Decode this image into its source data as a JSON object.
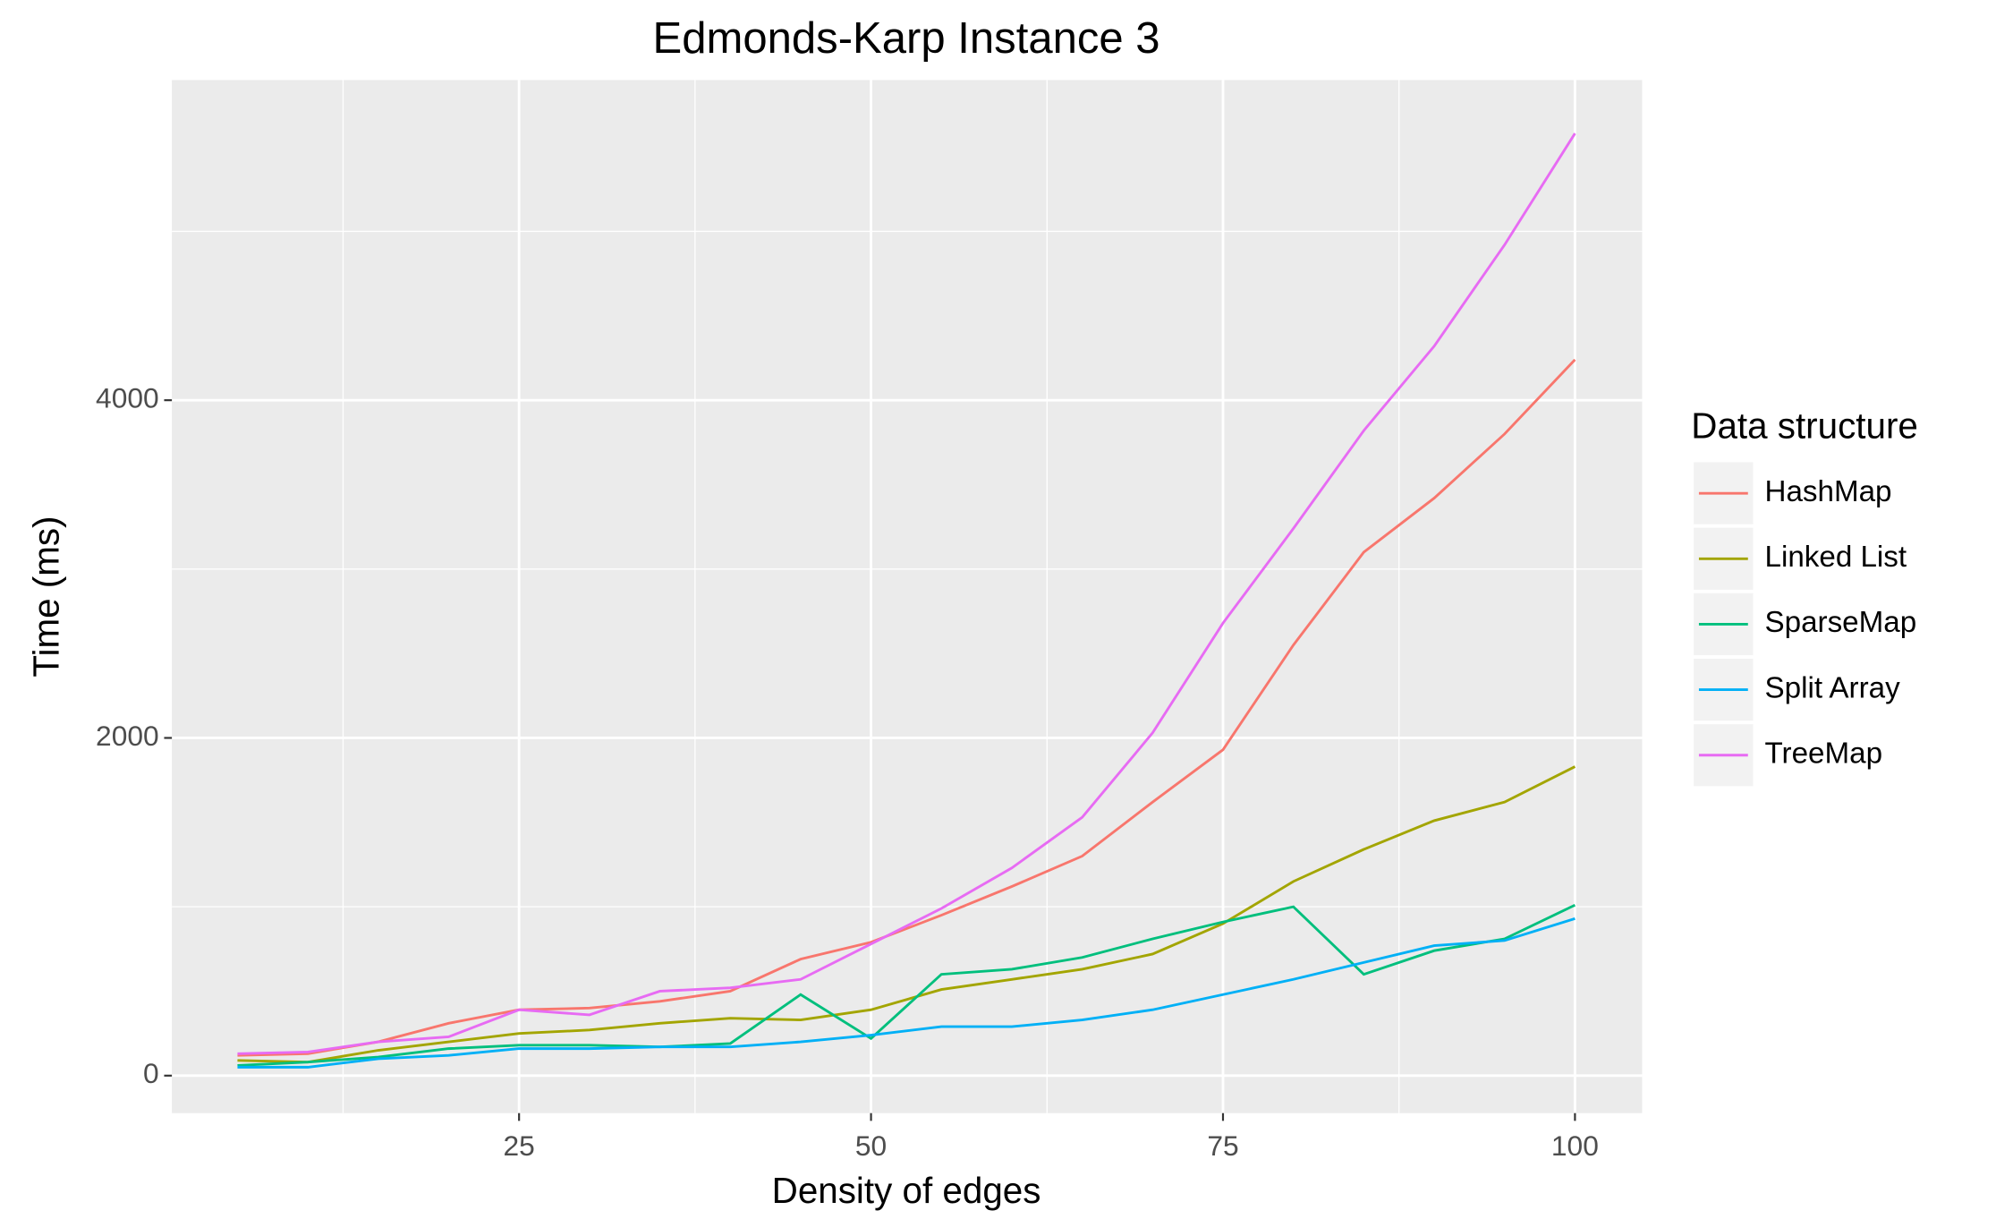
{
  "chart_data": {
    "type": "line",
    "title": "Edmonds-Karp Instance 3",
    "x_label": "Density of edges",
    "y_label": "Time (ms)",
    "x": [
      5,
      10,
      15,
      20,
      25,
      30,
      35,
      40,
      45,
      50,
      55,
      60,
      65,
      70,
      75,
      80,
      85,
      90,
      95,
      100
    ],
    "series": [
      {
        "name": "HashMap",
        "color": "#F8766D",
        "values": [
          120,
          130,
          200,
          310,
          390,
          400,
          440,
          500,
          690,
          790,
          950,
          1120,
          1300,
          1620,
          1930,
          2550,
          3100,
          3420,
          3800,
          4240
        ]
      },
      {
        "name": "Linked List",
        "color": "#A3A500",
        "values": [
          90,
          80,
          150,
          200,
          250,
          270,
          310,
          340,
          330,
          390,
          510,
          570,
          630,
          720,
          900,
          1150,
          1340,
          1510,
          1620,
          1830
        ]
      },
      {
        "name": "SparseMap",
        "color": "#00BF7D",
        "values": [
          60,
          80,
          110,
          160,
          180,
          180,
          170,
          190,
          480,
          220,
          600,
          630,
          700,
          810,
          910,
          1000,
          600,
          740,
          810,
          1010
        ]
      },
      {
        "name": "Split Array",
        "color": "#00B0F6",
        "values": [
          50,
          50,
          100,
          120,
          160,
          160,
          170,
          170,
          200,
          240,
          290,
          290,
          330,
          390,
          480,
          570,
          670,
          770,
          800,
          930
        ]
      },
      {
        "name": "TreeMap",
        "color": "#E76BF3",
        "values": [
          130,
          140,
          200,
          230,
          390,
          360,
          500,
          520,
          570,
          780,
          990,
          1230,
          1530,
          2030,
          2680,
          3240,
          3820,
          4320,
          4920,
          5580
        ]
      }
    ],
    "legend_title": "Data structure",
    "xlim": [
      0.34,
      104.77
    ],
    "xticks": [
      25,
      50,
      75,
      100
    ],
    "ylim": [
      -222,
      5896
    ],
    "yticks": [
      0,
      2000,
      4000
    ],
    "grid": true
  }
}
